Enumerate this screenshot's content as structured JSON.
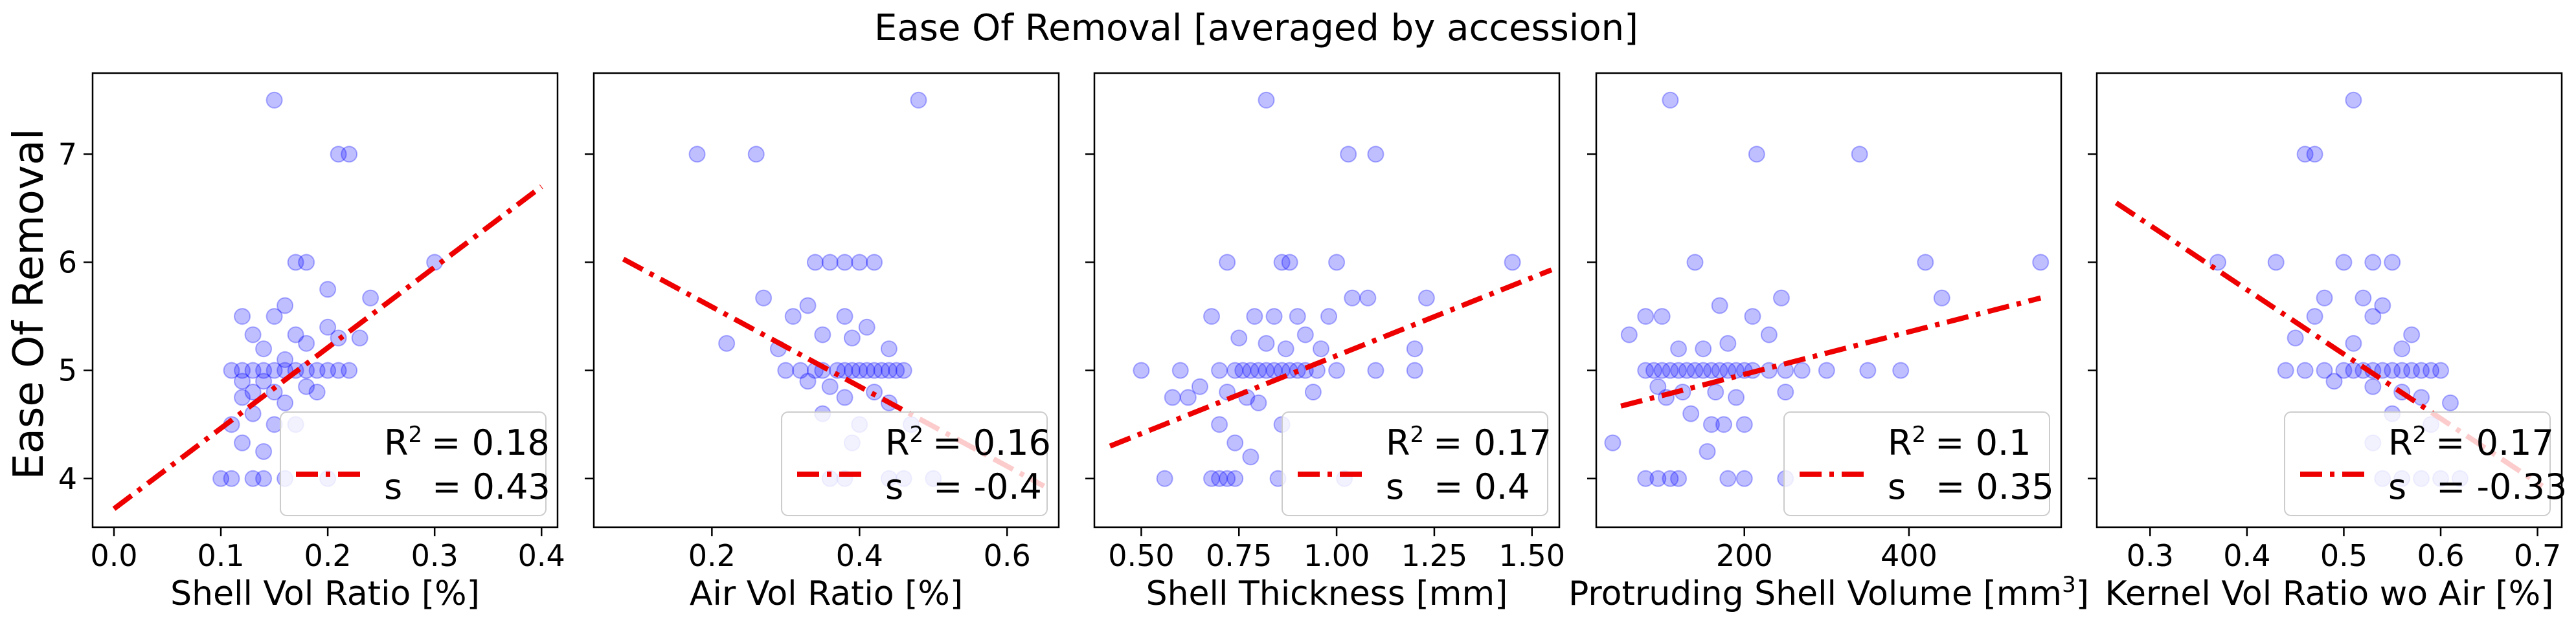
{
  "figure": {
    "suptitle": "Ease Of Removal [averaged by accession]",
    "ylabel": "Ease Of Removal",
    "yticks": [
      4,
      5,
      6,
      7
    ],
    "ylim": [
      3.55,
      7.75
    ],
    "colors": {
      "points": "#0000ff",
      "fit_line": "#ee0000",
      "axes": "#000000"
    }
  },
  "chart_data": [
    {
      "type": "scatter",
      "xlabel": "Shell Vol Ratio [%]",
      "xlim": [
        -0.02,
        0.415
      ],
      "xticks": [
        0.0,
        0.1,
        0.2,
        0.3,
        0.4
      ],
      "xtick_labels": [
        "0.0",
        "0.1",
        "0.2",
        "0.3",
        "0.4"
      ],
      "fit_line": {
        "x": [
          0.0,
          0.4
        ],
        "y": [
          3.72,
          6.7
        ]
      },
      "legend": {
        "r2_label": "R",
        "r2_sup": "2",
        "r2_value": "= 0.18",
        "s_label": "s",
        "s_value": "= 0.43",
        "loc": "lower right"
      },
      "points": [
        [
          0.15,
          7.5
        ],
        [
          0.21,
          7.0
        ],
        [
          0.22,
          7.0
        ],
        [
          0.3,
          6.0
        ],
        [
          0.17,
          6.0
        ],
        [
          0.18,
          6.0
        ],
        [
          0.2,
          5.75
        ],
        [
          0.24,
          5.67
        ],
        [
          0.16,
          5.6
        ],
        [
          0.12,
          5.5
        ],
        [
          0.15,
          5.5
        ],
        [
          0.2,
          5.4
        ],
        [
          0.13,
          5.33
        ],
        [
          0.17,
          5.33
        ],
        [
          0.21,
          5.3
        ],
        [
          0.23,
          5.3
        ],
        [
          0.18,
          5.25
        ],
        [
          0.14,
          5.2
        ],
        [
          0.16,
          5.1
        ],
        [
          0.11,
          5.0
        ],
        [
          0.12,
          5.0
        ],
        [
          0.13,
          5.0
        ],
        [
          0.14,
          5.0
        ],
        [
          0.15,
          5.0
        ],
        [
          0.16,
          5.0
        ],
        [
          0.17,
          5.0
        ],
        [
          0.18,
          5.0
        ],
        [
          0.19,
          5.0
        ],
        [
          0.2,
          5.0
        ],
        [
          0.21,
          5.0
        ],
        [
          0.22,
          5.0
        ],
        [
          0.12,
          4.9
        ],
        [
          0.14,
          4.9
        ],
        [
          0.18,
          4.85
        ],
        [
          0.13,
          4.8
        ],
        [
          0.15,
          4.8
        ],
        [
          0.19,
          4.8
        ],
        [
          0.12,
          4.75
        ],
        [
          0.16,
          4.7
        ],
        [
          0.13,
          4.6
        ],
        [
          0.15,
          4.5
        ],
        [
          0.11,
          4.5
        ],
        [
          0.17,
          4.5
        ],
        [
          0.12,
          4.33
        ],
        [
          0.14,
          4.25
        ],
        [
          0.1,
          4.0
        ],
        [
          0.11,
          4.0
        ],
        [
          0.13,
          4.0
        ],
        [
          0.14,
          4.0
        ],
        [
          0.16,
          4.0
        ],
        [
          0.2,
          4.0
        ]
      ]
    },
    {
      "type": "scatter",
      "xlabel": "Air Vol Ratio [%]",
      "xlim": [
        0.04,
        0.67
      ],
      "xticks": [
        0.2,
        0.4,
        0.6
      ],
      "xtick_labels": [
        "0.2",
        "0.4",
        "0.6"
      ],
      "fit_line": {
        "x": [
          0.08,
          0.65
        ],
        "y": [
          6.03,
          3.93
        ]
      },
      "legend": {
        "r2_label": "R",
        "r2_sup": "2",
        "r2_value": "= 0.16",
        "s_label": "s",
        "s_value": "= -0.4",
        "loc": "lower right"
      },
      "points": [
        [
          0.48,
          7.5
        ],
        [
          0.18,
          7.0
        ],
        [
          0.26,
          7.0
        ],
        [
          0.34,
          6.0
        ],
        [
          0.36,
          6.0
        ],
        [
          0.38,
          6.0
        ],
        [
          0.4,
          6.0
        ],
        [
          0.42,
          6.0
        ],
        [
          0.27,
          5.67
        ],
        [
          0.33,
          5.6
        ],
        [
          0.38,
          5.5
        ],
        [
          0.31,
          5.5
        ],
        [
          0.41,
          5.4
        ],
        [
          0.35,
          5.33
        ],
        [
          0.39,
          5.3
        ],
        [
          0.22,
          5.25
        ],
        [
          0.29,
          5.2
        ],
        [
          0.44,
          5.2
        ],
        [
          0.3,
          5.0
        ],
        [
          0.32,
          5.0
        ],
        [
          0.34,
          5.0
        ],
        [
          0.35,
          5.0
        ],
        [
          0.37,
          5.0
        ],
        [
          0.38,
          5.0
        ],
        [
          0.39,
          5.0
        ],
        [
          0.4,
          5.0
        ],
        [
          0.41,
          5.0
        ],
        [
          0.42,
          5.0
        ],
        [
          0.43,
          5.0
        ],
        [
          0.44,
          5.0
        ],
        [
          0.45,
          5.0
        ],
        [
          0.46,
          5.0
        ],
        [
          0.33,
          4.9
        ],
        [
          0.36,
          4.85
        ],
        [
          0.42,
          4.8
        ],
        [
          0.38,
          4.75
        ],
        [
          0.44,
          4.7
        ],
        [
          0.35,
          4.6
        ],
        [
          0.4,
          4.5
        ],
        [
          0.47,
          4.5
        ],
        [
          0.39,
          4.33
        ],
        [
          0.36,
          4.0
        ],
        [
          0.38,
          4.0
        ],
        [
          0.44,
          4.0
        ],
        [
          0.46,
          4.0
        ],
        [
          0.5,
          4.0
        ]
      ]
    },
    {
      "type": "scatter",
      "xlabel": "Shell Thickness [mm]",
      "xlim": [
        0.38,
        1.57
      ],
      "xticks": [
        0.5,
        0.75,
        1.0,
        1.25,
        1.5
      ],
      "xtick_labels": [
        "0.50",
        "0.75",
        "1.00",
        "1.25",
        "1.50"
      ],
      "fit_line": {
        "x": [
          0.42,
          1.55
        ],
        "y": [
          4.3,
          5.93
        ]
      },
      "legend": {
        "r2_label": "R",
        "r2_sup": "2",
        "r2_value": "= 0.17",
        "s_label": "s",
        "s_value": "= 0.4",
        "loc": "lower right"
      },
      "points": [
        [
          0.82,
          7.5
        ],
        [
          1.03,
          7.0
        ],
        [
          1.1,
          7.0
        ],
        [
          0.72,
          6.0
        ],
        [
          0.86,
          6.0
        ],
        [
          0.88,
          6.0
        ],
        [
          1.0,
          6.0
        ],
        [
          1.45,
          6.0
        ],
        [
          1.04,
          5.67
        ],
        [
          1.08,
          5.67
        ],
        [
          1.23,
          5.67
        ],
        [
          0.68,
          5.5
        ],
        [
          0.79,
          5.5
        ],
        [
          0.84,
          5.5
        ],
        [
          0.9,
          5.5
        ],
        [
          0.98,
          5.5
        ],
        [
          0.92,
          5.33
        ],
        [
          0.75,
          5.3
        ],
        [
          0.82,
          5.25
        ],
        [
          0.87,
          5.2
        ],
        [
          0.96,
          5.2
        ],
        [
          1.2,
          5.2
        ],
        [
          0.5,
          5.0
        ],
        [
          0.6,
          5.0
        ],
        [
          0.7,
          5.0
        ],
        [
          0.74,
          5.0
        ],
        [
          0.76,
          5.0
        ],
        [
          0.78,
          5.0
        ],
        [
          0.8,
          5.0
        ],
        [
          0.82,
          5.0
        ],
        [
          0.84,
          5.0
        ],
        [
          0.86,
          5.0
        ],
        [
          0.88,
          5.0
        ],
        [
          0.9,
          5.0
        ],
        [
          0.92,
          5.0
        ],
        [
          0.95,
          5.0
        ],
        [
          1.0,
          5.0
        ],
        [
          1.1,
          5.0
        ],
        [
          1.2,
          5.0
        ],
        [
          0.65,
          4.85
        ],
        [
          0.72,
          4.8
        ],
        [
          0.94,
          4.8
        ],
        [
          0.58,
          4.75
        ],
        [
          0.62,
          4.75
        ],
        [
          0.77,
          4.75
        ],
        [
          0.8,
          4.7
        ],
        [
          0.7,
          4.5
        ],
        [
          0.86,
          4.5
        ],
        [
          0.74,
          4.33
        ],
        [
          0.78,
          4.2
        ],
        [
          0.56,
          4.0
        ],
        [
          0.68,
          4.0
        ],
        [
          0.7,
          4.0
        ],
        [
          0.72,
          4.0
        ],
        [
          0.74,
          4.0
        ],
        [
          0.85,
          4.0
        ],
        [
          1.02,
          4.0
        ]
      ]
    },
    {
      "type": "scatter",
      "xlabel": "Protruding Shell Volume [mm",
      "xlabel_sup": "3",
      "xlabel_end": "]",
      "xlim": [
        20,
        585
      ],
      "xticks": [
        200,
        400
      ],
      "xtick_labels": [
        "200",
        "400"
      ],
      "fit_line": {
        "x": [
          50,
          560
        ],
        "y": [
          4.67,
          5.67
        ]
      },
      "legend": {
        "r2_label": "R",
        "r2_sup": "2",
        "r2_value": "= 0.1",
        "s_label": "s",
        "s_value": "= 0.35",
        "loc": "lower right"
      },
      "points": [
        [
          110,
          7.5
        ],
        [
          340,
          7.0
        ],
        [
          215,
          7.0
        ],
        [
          560,
          6.0
        ],
        [
          140,
          6.0
        ],
        [
          420,
          6.0
        ],
        [
          440,
          5.67
        ],
        [
          245,
          5.67
        ],
        [
          170,
          5.6
        ],
        [
          210,
          5.5
        ],
        [
          80,
          5.5
        ],
        [
          100,
          5.5
        ],
        [
          230,
          5.33
        ],
        [
          60,
          5.33
        ],
        [
          180,
          5.25
        ],
        [
          150,
          5.2
        ],
        [
          120,
          5.2
        ],
        [
          80,
          5.0
        ],
        [
          90,
          5.0
        ],
        [
          100,
          5.0
        ],
        [
          110,
          5.0
        ],
        [
          120,
          5.0
        ],
        [
          130,
          5.0
        ],
        [
          140,
          5.0
        ],
        [
          150,
          5.0
        ],
        [
          160,
          5.0
        ],
        [
          170,
          5.0
        ],
        [
          180,
          5.0
        ],
        [
          190,
          5.0
        ],
        [
          200,
          5.0
        ],
        [
          210,
          5.0
        ],
        [
          230,
          5.0
        ],
        [
          250,
          5.0
        ],
        [
          270,
          5.0
        ],
        [
          300,
          5.0
        ],
        [
          350,
          5.0
        ],
        [
          390,
          5.0
        ],
        [
          95,
          4.85
        ],
        [
          125,
          4.8
        ],
        [
          165,
          4.8
        ],
        [
          250,
          4.8
        ],
        [
          105,
          4.75
        ],
        [
          190,
          4.75
        ],
        [
          135,
          4.6
        ],
        [
          160,
          4.5
        ],
        [
          175,
          4.5
        ],
        [
          200,
          4.5
        ],
        [
          40,
          4.33
        ],
        [
          155,
          4.25
        ],
        [
          80,
          4.0
        ],
        [
          95,
          4.0
        ],
        [
          110,
          4.0
        ],
        [
          120,
          4.0
        ],
        [
          180,
          4.0
        ],
        [
          200,
          4.0
        ],
        [
          250,
          4.0
        ]
      ]
    },
    {
      "type": "scatter",
      "xlabel": "Kernel Vol Ratio wo Air [%]",
      "xlim": [
        0.245,
        0.725
      ],
      "xticks": [
        0.3,
        0.4,
        0.5,
        0.6,
        0.7
      ],
      "xtick_labels": [
        "0.3",
        "0.4",
        "0.5",
        "0.6",
        "0.7"
      ],
      "fit_line": {
        "x": [
          0.265,
          0.705
        ],
        "y": [
          6.55,
          3.93
        ]
      },
      "legend": {
        "r2_label": "R",
        "r2_sup": "2",
        "r2_value": "= 0.17",
        "s_label": "s",
        "s_value": "= -0.33",
        "loc": "lower right"
      },
      "points": [
        [
          0.51,
          7.5
        ],
        [
          0.46,
          7.0
        ],
        [
          0.47,
          7.0
        ],
        [
          0.37,
          6.0
        ],
        [
          0.43,
          6.0
        ],
        [
          0.5,
          6.0
        ],
        [
          0.53,
          6.0
        ],
        [
          0.55,
          6.0
        ],
        [
          0.48,
          5.67
        ],
        [
          0.52,
          5.67
        ],
        [
          0.54,
          5.6
        ],
        [
          0.47,
          5.5
        ],
        [
          0.53,
          5.5
        ],
        [
          0.57,
          5.33
        ],
        [
          0.45,
          5.3
        ],
        [
          0.51,
          5.25
        ],
        [
          0.56,
          5.2
        ],
        [
          0.44,
          5.0
        ],
        [
          0.46,
          5.0
        ],
        [
          0.48,
          5.0
        ],
        [
          0.5,
          5.0
        ],
        [
          0.51,
          5.0
        ],
        [
          0.52,
          5.0
        ],
        [
          0.53,
          5.0
        ],
        [
          0.54,
          5.0
        ],
        [
          0.55,
          5.0
        ],
        [
          0.56,
          5.0
        ],
        [
          0.57,
          5.0
        ],
        [
          0.58,
          5.0
        ],
        [
          0.59,
          5.0
        ],
        [
          0.6,
          5.0
        ],
        [
          0.49,
          4.9
        ],
        [
          0.53,
          4.85
        ],
        [
          0.56,
          4.8
        ],
        [
          0.58,
          4.75
        ],
        [
          0.61,
          4.7
        ],
        [
          0.55,
          4.6
        ],
        [
          0.59,
          4.5
        ],
        [
          0.53,
          4.33
        ],
        [
          0.54,
          4.0
        ],
        [
          0.56,
          4.0
        ],
        [
          0.58,
          4.0
        ],
        [
          0.6,
          4.0
        ],
        [
          0.62,
          4.0
        ]
      ]
    }
  ]
}
